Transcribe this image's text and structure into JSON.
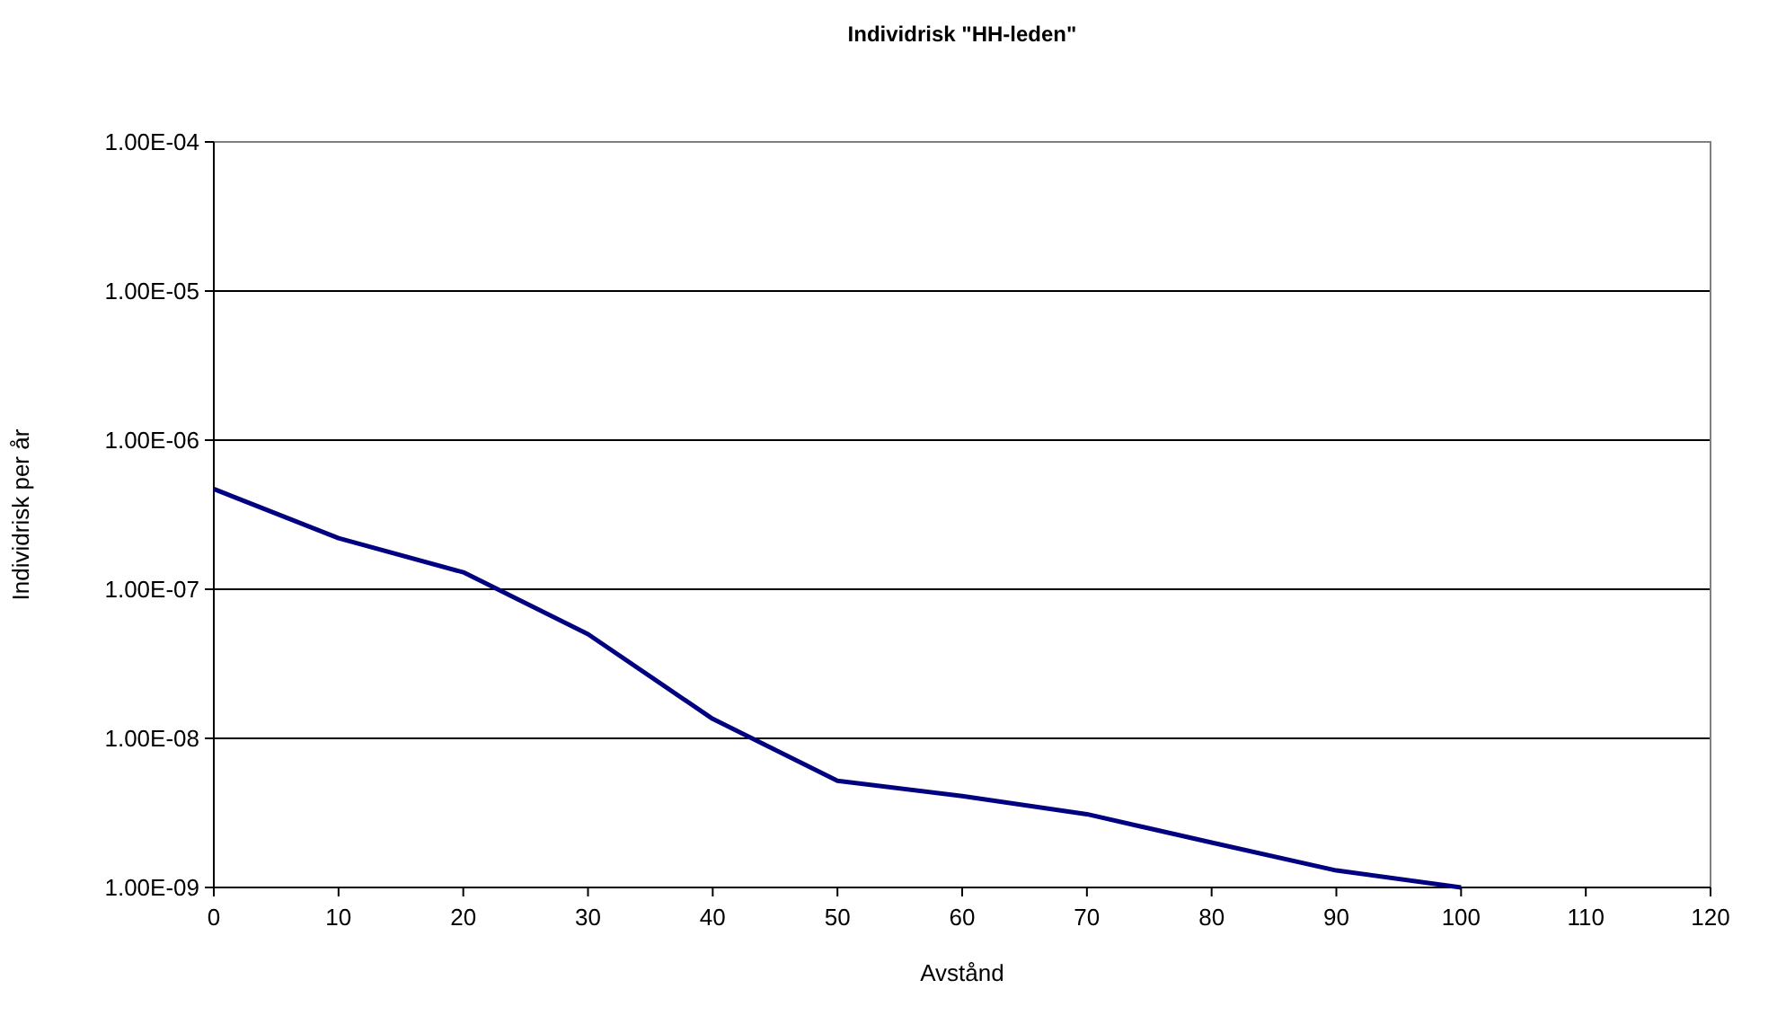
{
  "chart_data": {
    "type": "line",
    "title": "Individrisk \"HH-leden\"",
    "xlabel": "Avstånd",
    "ylabel": "Individrisk per år",
    "x": [
      0,
      10,
      20,
      30,
      40,
      50,
      60,
      70,
      80,
      90,
      100
    ],
    "series": [
      {
        "color": "#000080",
        "values": [
          4.7e-07,
          2.2e-07,
          1.3e-07,
          5e-08,
          1.35e-08,
          5.2e-09,
          4.1e-09,
          3.1e-09,
          2e-09,
          1.3e-09,
          1e-09
        ]
      }
    ],
    "xlim": [
      0,
      120
    ],
    "xticks": [
      0,
      10,
      20,
      30,
      40,
      50,
      60,
      70,
      80,
      90,
      100,
      110,
      120
    ],
    "ylim": [
      1e-09,
      0.0001
    ],
    "yticks": [
      {
        "value": 1e-09,
        "label": "1.00E-09"
      },
      {
        "value": 1e-08,
        "label": "1.00E-08"
      },
      {
        "value": 1e-07,
        "label": "1.00E-07"
      },
      {
        "value": 1e-06,
        "label": "1.00E-06"
      },
      {
        "value": 1e-05,
        "label": "1.00E-05"
      },
      {
        "value": 0.0001,
        "label": "1.00E-04"
      }
    ],
    "log": "y",
    "grid": "y",
    "marker": "none",
    "line_style": "solid"
  }
}
